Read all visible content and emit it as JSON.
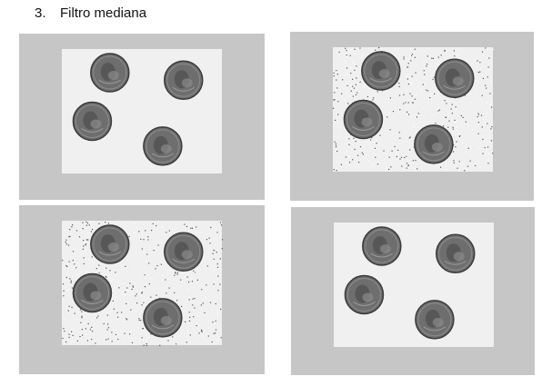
{
  "heading": {
    "number": "3.",
    "text": "Filtro mediana"
  },
  "panels": [
    {
      "name": "original-coins-image",
      "noise": "none"
    },
    {
      "name": "noisy-coins-image",
      "noise": "salt-and-pepper"
    },
    {
      "name": "noisy-coins-image-2",
      "noise": "salt-and-pepper"
    },
    {
      "name": "median-filtered-coins-image",
      "noise": "none"
    }
  ],
  "colors": {
    "frame": "#c6c6c6",
    "paper": "#f0f0f0",
    "coin": "#6e6e6e"
  }
}
